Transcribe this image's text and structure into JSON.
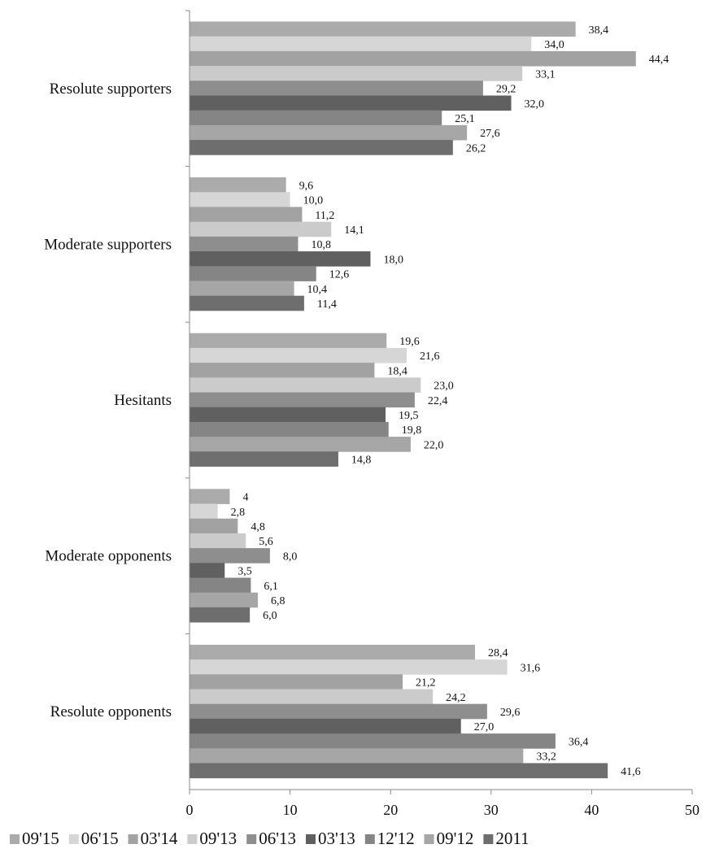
{
  "chart_data": {
    "type": "bar",
    "orientation": "horizontal",
    "categories": [
      "Resolute supporters",
      "Moderate supporters",
      "Hesitants",
      "Moderate opponents",
      "Resolute opponents"
    ],
    "series": [
      {
        "name": "09'15",
        "color": "#ababab",
        "values": [
          38.4,
          9.6,
          19.6,
          4,
          28.4
        ],
        "labels": [
          "38,4",
          "9,6",
          "19,6",
          "4",
          "28,4"
        ]
      },
      {
        "name": "06'15",
        "color": "#d6d6d6",
        "values": [
          34.0,
          10.0,
          21.6,
          2.8,
          31.6
        ],
        "labels": [
          "34,0",
          "10,0",
          "21,6",
          "2,8",
          "31,6"
        ]
      },
      {
        "name": "03'14",
        "color": "#a2a2a2",
        "values": [
          44.4,
          11.2,
          18.4,
          4.8,
          21.2
        ],
        "labels": [
          "44,4",
          "11,2",
          "18,4",
          "4,8",
          "21,2"
        ]
      },
      {
        "name": "09'13",
        "color": "#cbcbcb",
        "values": [
          33.1,
          14.1,
          23.0,
          5.6,
          24.2
        ],
        "labels": [
          "33,1",
          "14,1",
          "23,0",
          "5,6",
          "24,2"
        ]
      },
      {
        "name": "06'13",
        "color": "#8e8e8e",
        "values": [
          29.2,
          10.8,
          22.4,
          8.0,
          29.6
        ],
        "labels": [
          "29,2",
          "10,8",
          "22,4",
          "8,0",
          "29,6"
        ]
      },
      {
        "name": "03'13",
        "color": "#606060",
        "values": [
          32.0,
          18.0,
          19.5,
          3.5,
          27.0
        ],
        "labels": [
          "32,0",
          "18,0",
          "19,5",
          "3,5",
          "27,0"
        ]
      },
      {
        "name": "12'12",
        "color": "#858585",
        "values": [
          25.1,
          12.6,
          19.8,
          6.1,
          36.4
        ],
        "labels": [
          "25,1",
          "12,6",
          "19,8",
          "6,1",
          "36,4"
        ]
      },
      {
        "name": "09'12",
        "color": "#a6a6a6",
        "values": [
          27.6,
          10.4,
          22.0,
          6.8,
          33.2
        ],
        "labels": [
          "27,6",
          "10,4",
          "22,0",
          "6,8",
          "33,2"
        ]
      },
      {
        "name": "2011",
        "color": "#6e6e6e",
        "values": [
          26.2,
          11.4,
          14.8,
          6.0,
          41.6
        ],
        "labels": [
          "26,2",
          "11,4",
          "14,8",
          "6,0",
          "41,6"
        ]
      }
    ],
    "xlim": [
      0,
      50
    ],
    "xticks": [
      "0",
      "10",
      "20",
      "30",
      "40",
      "50"
    ],
    "grid": false,
    "legend_position": "bottom"
  }
}
